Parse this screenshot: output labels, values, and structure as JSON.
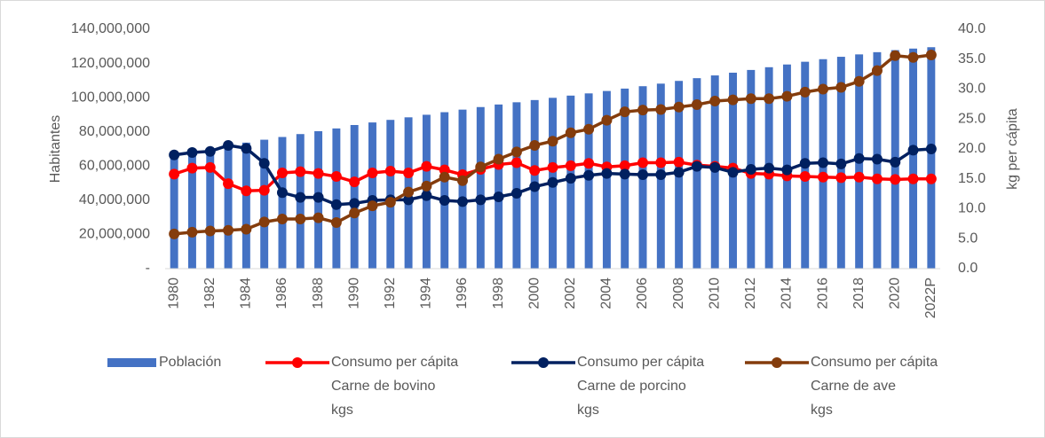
{
  "chart_data": {
    "type": "bar_line",
    "categories": [
      "1980",
      null,
      "1982",
      null,
      "1984",
      null,
      "1986",
      null,
      "1988",
      null,
      "1990",
      null,
      "1992",
      null,
      "1994",
      null,
      "1996",
      null,
      "1998",
      null,
      "2000",
      null,
      "2002",
      null,
      "2004",
      null,
      "2006",
      null,
      "2008",
      null,
      "2010",
      null,
      "2012",
      null,
      "2014",
      null,
      "2016",
      null,
      "2018",
      null,
      "2020",
      null,
      "2022P"
    ],
    "ylabel": "Habitantes",
    "y2label": "kg per cápita",
    "ylim": [
      0,
      140000000
    ],
    "yticks": [
      {
        "value": 0,
        "label": "-"
      },
      {
        "value": 20000000,
        "label": "20,000,000"
      },
      {
        "value": 40000000,
        "label": "40,000,000"
      },
      {
        "value": 60000000,
        "label": "60,000,000"
      },
      {
        "value": 80000000,
        "label": "80,000,000"
      },
      {
        "value": 100000000,
        "label": "100,000,000"
      },
      {
        "value": 120000000,
        "label": "120,000,000"
      },
      {
        "value": 140000000,
        "label": "140,000,000"
      }
    ],
    "y2lim": [
      0,
      40
    ],
    "y2ticks": [
      {
        "value": 0,
        "label": "0.0"
      },
      {
        "value": 5,
        "label": "5.0"
      },
      {
        "value": 10,
        "label": "10.0"
      },
      {
        "value": 15,
        "label": "15.0"
      },
      {
        "value": 20,
        "label": "20.0"
      },
      {
        "value": 25,
        "label": "25.0"
      },
      {
        "value": 30,
        "label": "30.0"
      },
      {
        "value": 35,
        "label": "35.0"
      },
      {
        "value": 40,
        "label": "40.0"
      }
    ],
    "legend": "bottom",
    "series": [
      {
        "name": "Población",
        "type": "bar",
        "color": "#4472c4",
        "values": [
          67000000,
          68700000,
          70400000,
          72000000,
          73700000,
          75400000,
          77000000,
          78700000,
          80400000,
          82000000,
          84000000,
          85500000,
          87000000,
          88500000,
          90000000,
          91500000,
          93000000,
          94500000,
          96000000,
          97300000,
          98600000,
          99900000,
          101200000,
          102500000,
          103900000,
          105300000,
          106700000,
          108200000,
          109800000,
          111400000,
          113000000,
          114600000,
          116200000,
          117800000,
          119400000,
          121000000,
          122500000,
          123900000,
          125300000,
          126600000,
          127800000,
          128700000,
          129500000
        ]
      },
      {
        "name": "Consumo per cápita\nCarne de bovino\nkgs",
        "type": "line",
        "axis": "y2",
        "color": "#ff0000",
        "values": [
          15.8,
          16.8,
          16.9,
          14.2,
          13.0,
          13.1,
          16.0,
          16.2,
          15.9,
          15.4,
          14.5,
          16.0,
          16.3,
          16.0,
          17.1,
          16.5,
          15.7,
          16.6,
          17.4,
          17.7,
          16.4,
          16.9,
          17.2,
          17.6,
          17.0,
          17.2,
          17.7,
          17.7,
          17.8,
          17.3,
          17.1,
          16.8,
          15.9,
          15.8,
          15.5,
          15.4,
          15.3,
          15.2,
          15.3,
          15.0,
          14.9,
          15.0,
          15.0
        ]
      },
      {
        "name": "Consumo per cápita\nCarne de porcino\nkgs",
        "type": "line",
        "axis": "y2",
        "color": "#002060",
        "values": [
          19.0,
          19.4,
          19.6,
          20.6,
          20.1,
          17.6,
          12.7,
          11.9,
          11.9,
          10.7,
          10.9,
          11.4,
          11.5,
          11.5,
          12.2,
          11.4,
          11.2,
          11.5,
          12.0,
          12.6,
          13.7,
          14.4,
          15.1,
          15.6,
          15.9,
          15.8,
          15.7,
          15.7,
          16.1,
          17.1,
          16.9,
          16.1,
          16.6,
          16.8,
          16.5,
          17.6,
          17.7,
          17.5,
          18.4,
          18.3,
          17.8,
          19.8,
          20.0
        ]
      },
      {
        "name": "Consumo per cápita\nCarne de ave\nkgs",
        "type": "line",
        "axis": "y2",
        "color": "#843c0c",
        "values": [
          5.8,
          6.1,
          6.3,
          6.4,
          6.6,
          7.8,
          8.3,
          8.3,
          8.5,
          7.7,
          9.3,
          10.5,
          11.1,
          12.8,
          13.8,
          15.3,
          14.7,
          17.0,
          18.3,
          19.5,
          20.6,
          21.3,
          22.7,
          23.3,
          24.8,
          26.2,
          26.5,
          26.6,
          27.0,
          27.4,
          28.0,
          28.2,
          28.4,
          28.4,
          28.8,
          29.5,
          30.0,
          30.3,
          31.3,
          33.1,
          35.6,
          35.3,
          35.7
        ]
      }
    ]
  }
}
